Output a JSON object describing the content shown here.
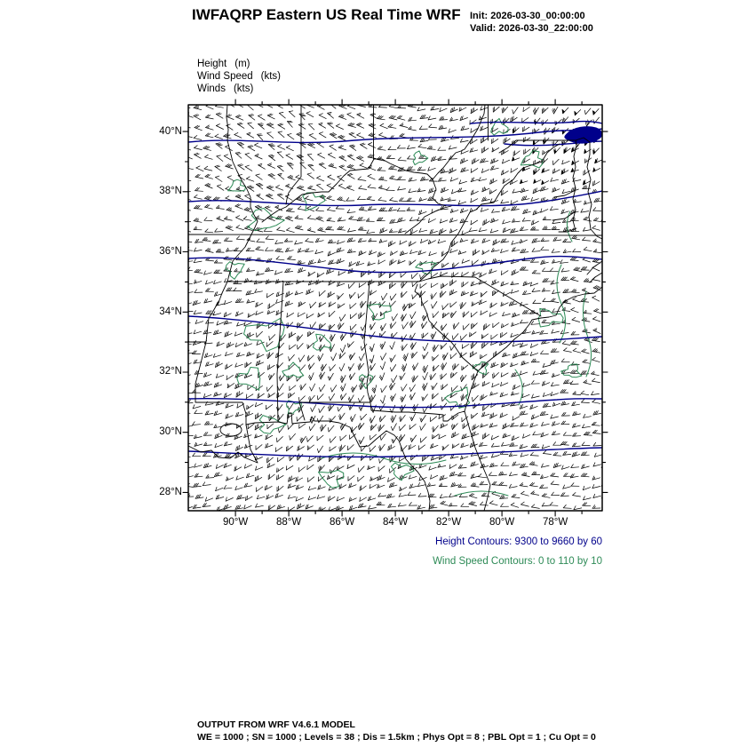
{
  "header": {
    "title": "IWFAQRP Eastern US Real Time WRF",
    "init_label": "Init: 2026-03-30_00:00:00",
    "valid_label": "Valid: 2026-03-30_22:00:00"
  },
  "legend": {
    "items": [
      {
        "name": "Height",
        "unit": "(m)"
      },
      {
        "name": "Wind Speed",
        "unit": "(kts)"
      },
      {
        "name": "Winds",
        "unit": "(kts)"
      }
    ]
  },
  "chart_data": {
    "type": "contour-map",
    "title": "IWFAQRP Eastern US Real Time WRF",
    "x_axis": {
      "ticks": [
        "90°W",
        "88°W",
        "86°W",
        "84°W",
        "82°W",
        "80°W",
        "78°W"
      ]
    },
    "y_axis": {
      "ticks": [
        "40°N",
        "38°N",
        "36°N",
        "34°N",
        "32°N",
        "30°N",
        "28°N"
      ]
    },
    "layers": [
      {
        "name": "Height",
        "unit": "m",
        "style": "contour-lines",
        "min": 9300,
        "max": 9660,
        "interval": 60,
        "levels": [
          9300,
          9360,
          9420,
          9480,
          9540,
          9600,
          9660
        ],
        "color": "#00008b"
      },
      {
        "name": "Wind Speed",
        "unit": "kts",
        "style": "contour-lines",
        "min": 0,
        "max": 110,
        "interval": 10,
        "color": "#2e8b57"
      },
      {
        "name": "Winds",
        "unit": "kts",
        "style": "wind-barbs",
        "color": "#000000"
      }
    ],
    "basemap": {
      "outline_color": "#000000",
      "features": "Southeastern US state boundaries and coastline"
    },
    "grid": false,
    "legend_position": "top-left"
  },
  "footer_notes": {
    "height_contours": "Height Contours: 9300 to 9660 by 60",
    "wind_speed_contours": "Wind Speed Contours: 0 to 110 by 10"
  },
  "model_info": {
    "line1": "OUTPUT FROM WRF V4.6.1 MODEL",
    "line2": "WE = 1000 ; SN = 1000 ; Levels = 38 ; Dis = 1.5km ; Phys Opt = 8 ; PBL Opt = 1 ; Cu Opt = 0"
  }
}
